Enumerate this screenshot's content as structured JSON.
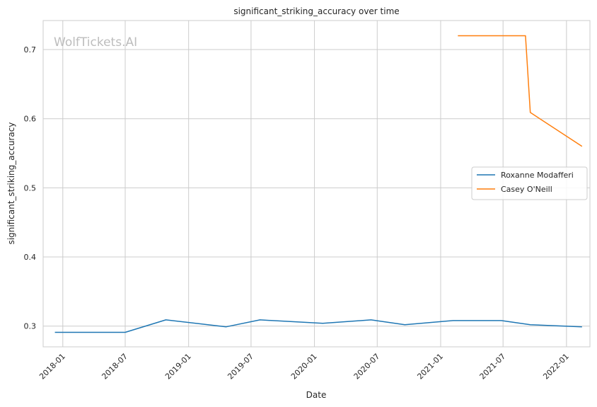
{
  "chart_data": {
    "type": "line",
    "title": "significant_striking_accuracy over time",
    "xlabel": "Date",
    "ylabel": "significant_striking_accuracy",
    "watermark": "WolfTickets.AI",
    "x_ticks": [
      "2018-01",
      "2018-07",
      "2019-01",
      "2019-07",
      "2020-01",
      "2020-07",
      "2021-01",
      "2021-07",
      "2022-01"
    ],
    "y_ticks": [
      0.3,
      0.4,
      0.5,
      0.6,
      0.7
    ],
    "xlim": [
      "2017-11-05",
      "2022-03-10"
    ],
    "ylim": [
      0.27,
      0.742
    ],
    "grid": true,
    "legend_position": "center-right",
    "series": [
      {
        "name": "Roxanne Modafferi",
        "color": "#1f77b4",
        "points": [
          [
            "2017-12-09",
            0.291
          ],
          [
            "2018-07-01",
            0.291
          ],
          [
            "2018-10-27",
            0.309
          ],
          [
            "2019-04-20",
            0.299
          ],
          [
            "2019-07-27",
            0.309
          ],
          [
            "2020-01-25",
            0.304
          ],
          [
            "2020-06-13",
            0.309
          ],
          [
            "2020-09-19",
            0.302
          ],
          [
            "2021-02-06",
            0.308
          ],
          [
            "2021-06-26",
            0.308
          ],
          [
            "2021-09-18",
            0.302
          ],
          [
            "2022-02-15",
            0.299
          ]
        ]
      },
      {
        "name": "Casey O'Neill",
        "color": "#ff7f0e",
        "points": [
          [
            "2021-02-20",
            0.72
          ],
          [
            "2021-09-04",
            0.72
          ],
          [
            "2021-09-18",
            0.609
          ],
          [
            "2022-02-15",
            0.56
          ]
        ]
      }
    ]
  }
}
